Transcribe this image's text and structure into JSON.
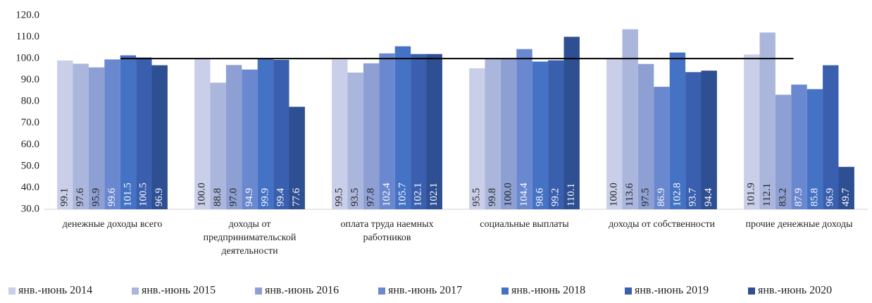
{
  "chart_data": {
    "type": "bar",
    "categories": [
      "денежные доходы всего",
      "доходы от предпринимательской деятельности",
      "оплата  труда наемных работников",
      "социальные выплаты",
      "доходы от собственности",
      "прочие денежные доходы"
    ],
    "series": [
      {
        "name": "янв.-июнь 2014",
        "color": "#c9cfe8",
        "values": [
          99.1,
          100.0,
          99.5,
          95.5,
          100.0,
          101.9
        ],
        "value_labels": [
          "99.1",
          "100.0",
          "99.5",
          "95.5",
          "100.0",
          "101.9"
        ]
      },
      {
        "name": "янв.-июнь 2015",
        "color": "#abb6dc",
        "values": [
          97.6,
          88.8,
          93.5,
          99.8,
          113.6,
          112.1
        ],
        "value_labels": [
          "97.6",
          "88.8",
          "93.5",
          "99.8",
          "113.6",
          "112.1"
        ]
      },
      {
        "name": "янв.-июнь 2016",
        "color": "#8e9fd3",
        "values": [
          95.9,
          97.0,
          97.8,
          100.0,
          97.5,
          83.2
        ],
        "value_labels": [
          "95.9",
          "97.0",
          "97.8",
          "100.0",
          "97.5",
          "83.2"
        ]
      },
      {
        "name": "янв.-июнь 2017",
        "color": "#6a88cf",
        "values": [
          99.6,
          94.9,
          102.4,
          104.4,
          86.9,
          87.9
        ],
        "value_labels": [
          "99.6",
          "94.9",
          "102.4",
          "104.4",
          "86.9",
          "87.9"
        ]
      },
      {
        "name": "янв.-июнь 2018",
        "color": "#4472c4",
        "values": [
          101.5,
          99.9,
          105.7,
          98.6,
          102.8,
          85.8
        ],
        "value_labels": [
          "101.5",
          "99.9",
          "105.7",
          "98.6",
          "102.8",
          "85.8"
        ]
      },
      {
        "name": "янв.-июнь 2019",
        "color": "#3a5fae",
        "values": [
          100.5,
          99.4,
          102.1,
          99.2,
          93.7,
          96.9
        ],
        "value_labels": [
          "100.5",
          "99.4",
          "102.1",
          "99.2",
          "93.7",
          "96.9"
        ]
      },
      {
        "name": "янв.-июнь 2020",
        "color": "#2f4f93",
        "values": [
          96.9,
          77.6,
          102.1,
          110.1,
          94.4,
          49.7
        ],
        "value_labels": [
          "96.9",
          "77.6",
          "102.1",
          "110.1",
          "94.4",
          "49.7"
        ]
      }
    ],
    "reference_line": 100,
    "ylim": [
      30,
      120
    ],
    "yticks": [
      {
        "value": 30,
        "label": "30.0"
      },
      {
        "value": 40,
        "label": "40.0"
      },
      {
        "value": 50,
        "label": "50.0"
      },
      {
        "value": 60,
        "label": "60.0"
      },
      {
        "value": 70,
        "label": "70.0"
      },
      {
        "value": 80,
        "label": "80.0"
      },
      {
        "value": 90,
        "label": "90.0"
      },
      {
        "value": 100,
        "label": "100.0"
      },
      {
        "value": 110,
        "label": "110.0"
      },
      {
        "value": 120,
        "label": "120.0"
      }
    ],
    "legend": "bottom"
  }
}
